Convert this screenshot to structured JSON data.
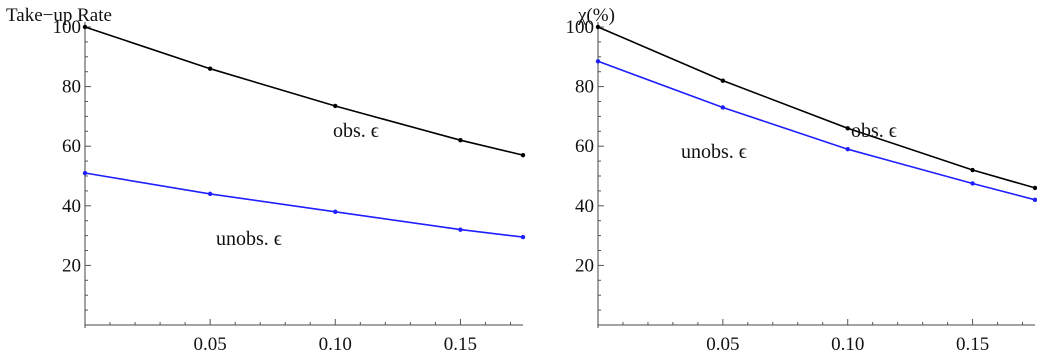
{
  "chart_data": [
    {
      "type": "line",
      "ylabel": "Take−up Rate",
      "xlim": [
        0,
        0.175
      ],
      "ylim": [
        0,
        100
      ],
      "x_ticks": [
        0.05,
        0.1,
        0.15
      ],
      "x_tick_labels": [
        "0.05",
        "0.10",
        "0.15"
      ],
      "y_ticks": [
        20,
        40,
        60,
        80,
        100
      ],
      "y_tick_labels": [
        "20",
        "40",
        "60",
        "80",
        "100"
      ],
      "grid": false,
      "series": [
        {
          "name": "obs. ϵ",
          "color": "#000000",
          "x": [
            0,
            0.05,
            0.1,
            0.15,
            0.175
          ],
          "y": [
            100,
            86,
            73.5,
            62,
            57
          ]
        },
        {
          "name": "unobs. ϵ",
          "color": "#1f1fff",
          "x": [
            0,
            0.05,
            0.1,
            0.15,
            0.175
          ],
          "y": [
            51,
            44,
            38,
            32,
            29.5
          ]
        }
      ]
    },
    {
      "type": "line",
      "ylabel": "χ(%)",
      "xlim": [
        0,
        0.175
      ],
      "ylim": [
        0,
        100
      ],
      "x_ticks": [
        0.05,
        0.1,
        0.15
      ],
      "x_tick_labels": [
        "0.05",
        "0.10",
        "0.15"
      ],
      "y_ticks": [
        20,
        40,
        60,
        80,
        100
      ],
      "y_tick_labels": [
        "20",
        "40",
        "60",
        "80",
        "100"
      ],
      "grid": false,
      "series": [
        {
          "name": "obs. ϵ",
          "color": "#000000",
          "x": [
            0,
            0.05,
            0.1,
            0.15,
            0.175
          ],
          "y": [
            100,
            82,
            66,
            52,
            46
          ]
        },
        {
          "name": "unobs. ϵ",
          "color": "#1f1fff",
          "x": [
            0,
            0.05,
            0.1,
            0.15,
            0.175
          ],
          "y": [
            88.5,
            73,
            59,
            47.5,
            42
          ]
        }
      ]
    }
  ]
}
